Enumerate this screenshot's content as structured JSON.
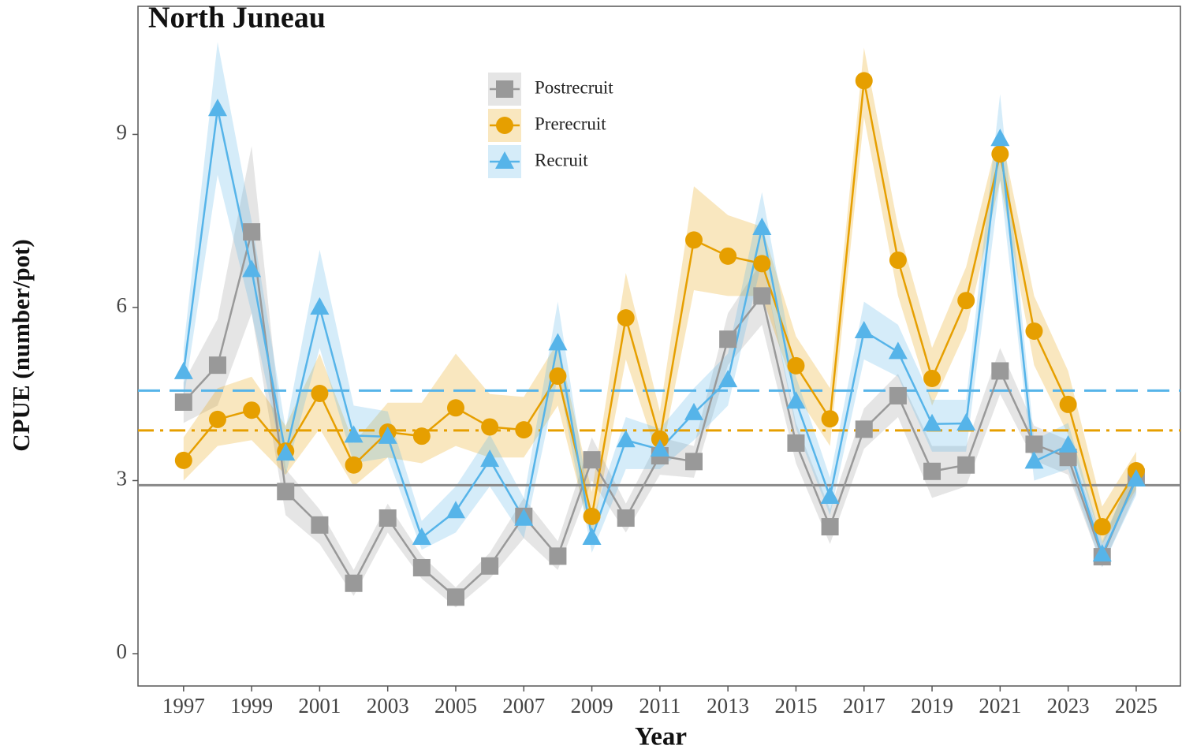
{
  "chart_data": {
    "type": "line",
    "title": "North Juneau",
    "x_label": "Year",
    "y_label": "CPUE (number/pot)",
    "x": [
      1997,
      1998,
      1999,
      2000,
      2001,
      2002,
      2003,
      2004,
      2005,
      2006,
      2007,
      2008,
      2009,
      2010,
      2011,
      2012,
      2013,
      2014,
      2015,
      2016,
      2017,
      2018,
      2019,
      2020,
      2021,
      2022,
      2023,
      2024,
      2025
    ],
    "xlim": [
      1995.66,
      2026.3
    ],
    "xticks": [
      1997,
      1999,
      2001,
      2003,
      2005,
      2007,
      2009,
      2011,
      2013,
      2015,
      2017,
      2019,
      2021,
      2023,
      2025
    ],
    "ylim": [
      -0.56,
      11.22
    ],
    "yticks": [
      0,
      3,
      6,
      9
    ],
    "series": [
      {
        "name": "Postrecruit",
        "color": "#999999",
        "marker": "square",
        "values": [
          4.36,
          5.0,
          7.31,
          2.81,
          2.23,
          1.22,
          2.35,
          1.49,
          0.98,
          1.52,
          2.38,
          1.69,
          3.36,
          2.35,
          3.43,
          3.33,
          5.45,
          6.2,
          3.65,
          2.2,
          3.89,
          4.47,
          3.16,
          3.27,
          4.9,
          3.63,
          3.4,
          1.68,
          3.06
        ],
        "lower": [
          4.0,
          4.3,
          5.9,
          2.4,
          1.9,
          1.0,
          2.1,
          1.3,
          0.8,
          1.3,
          2.0,
          1.45,
          3.0,
          2.1,
          3.1,
          3.05,
          5.0,
          5.7,
          3.3,
          1.9,
          3.55,
          4.1,
          2.7,
          2.9,
          4.5,
          3.35,
          3.1,
          1.5,
          2.8
        ],
        "upper": [
          4.7,
          5.8,
          8.8,
          3.2,
          2.5,
          1.45,
          2.6,
          1.7,
          1.15,
          1.75,
          2.7,
          1.95,
          3.75,
          2.6,
          3.75,
          3.6,
          5.9,
          6.8,
          4.0,
          2.5,
          4.25,
          4.85,
          3.6,
          3.6,
          5.3,
          3.95,
          3.7,
          1.9,
          3.35
        ]
      },
      {
        "name": "Prerecruit",
        "color": "#E69F00",
        "marker": "circle",
        "values": [
          3.35,
          4.06,
          4.22,
          3.51,
          4.51,
          3.27,
          3.84,
          3.77,
          4.26,
          3.93,
          3.88,
          4.81,
          2.38,
          5.82,
          3.72,
          7.17,
          6.89,
          6.76,
          4.99,
          4.07,
          9.93,
          6.82,
          4.77,
          6.12,
          8.66,
          5.59,
          4.32,
          2.2,
          3.17
        ],
        "lower": [
          3.0,
          3.6,
          3.7,
          3.1,
          3.9,
          2.9,
          3.4,
          3.3,
          3.6,
          3.4,
          3.4,
          4.3,
          2.0,
          5.1,
          3.3,
          6.3,
          6.2,
          6.2,
          4.5,
          3.6,
          9.3,
          6.2,
          4.3,
          5.6,
          8.2,
          5.0,
          3.8,
          1.9,
          2.85
        ],
        "upper": [
          3.75,
          4.6,
          4.8,
          3.95,
          5.2,
          3.65,
          4.35,
          4.35,
          5.2,
          4.5,
          4.45,
          5.4,
          2.8,
          6.6,
          4.2,
          8.1,
          7.6,
          7.4,
          5.5,
          4.6,
          10.5,
          7.4,
          5.3,
          6.7,
          9.1,
          6.2,
          4.9,
          2.55,
          3.5
        ]
      },
      {
        "name": "Recruit",
        "color": "#56B4E9",
        "marker": "triangle",
        "values": [
          4.88,
          9.44,
          6.65,
          3.47,
          6.0,
          3.78,
          3.76,
          2.01,
          2.47,
          3.36,
          2.34,
          5.38,
          2.01,
          3.7,
          3.54,
          4.17,
          4.74,
          7.38,
          4.37,
          2.72,
          5.59,
          5.23,
          3.98,
          3.99,
          8.92,
          3.33,
          3.61,
          1.72,
          3.02
        ],
        "lower": [
          4.4,
          8.3,
          5.9,
          3.1,
          5.3,
          3.3,
          3.4,
          1.8,
          2.1,
          2.9,
          2.0,
          4.8,
          1.75,
          3.2,
          3.2,
          3.7,
          4.3,
          6.8,
          3.9,
          2.4,
          5.1,
          4.8,
          3.5,
          3.5,
          8.2,
          3.0,
          3.2,
          1.5,
          2.75
        ],
        "upper": [
          5.3,
          10.6,
          7.5,
          3.9,
          7.0,
          4.3,
          4.2,
          2.3,
          2.9,
          3.8,
          2.7,
          6.1,
          2.3,
          4.1,
          3.9,
          4.6,
          5.2,
          8.0,
          4.8,
          3.05,
          6.1,
          5.7,
          4.4,
          4.4,
          9.7,
          3.7,
          4.0,
          1.95,
          3.3
        ]
      }
    ],
    "hlines": [
      {
        "value": 4.56,
        "color": "#56B4E9",
        "dash": "dashed"
      },
      {
        "value": 3.87,
        "color": "#E69F00",
        "dash": "dashdot"
      },
      {
        "value": 2.92,
        "color": "#888888",
        "dash": "solid"
      }
    ]
  }
}
